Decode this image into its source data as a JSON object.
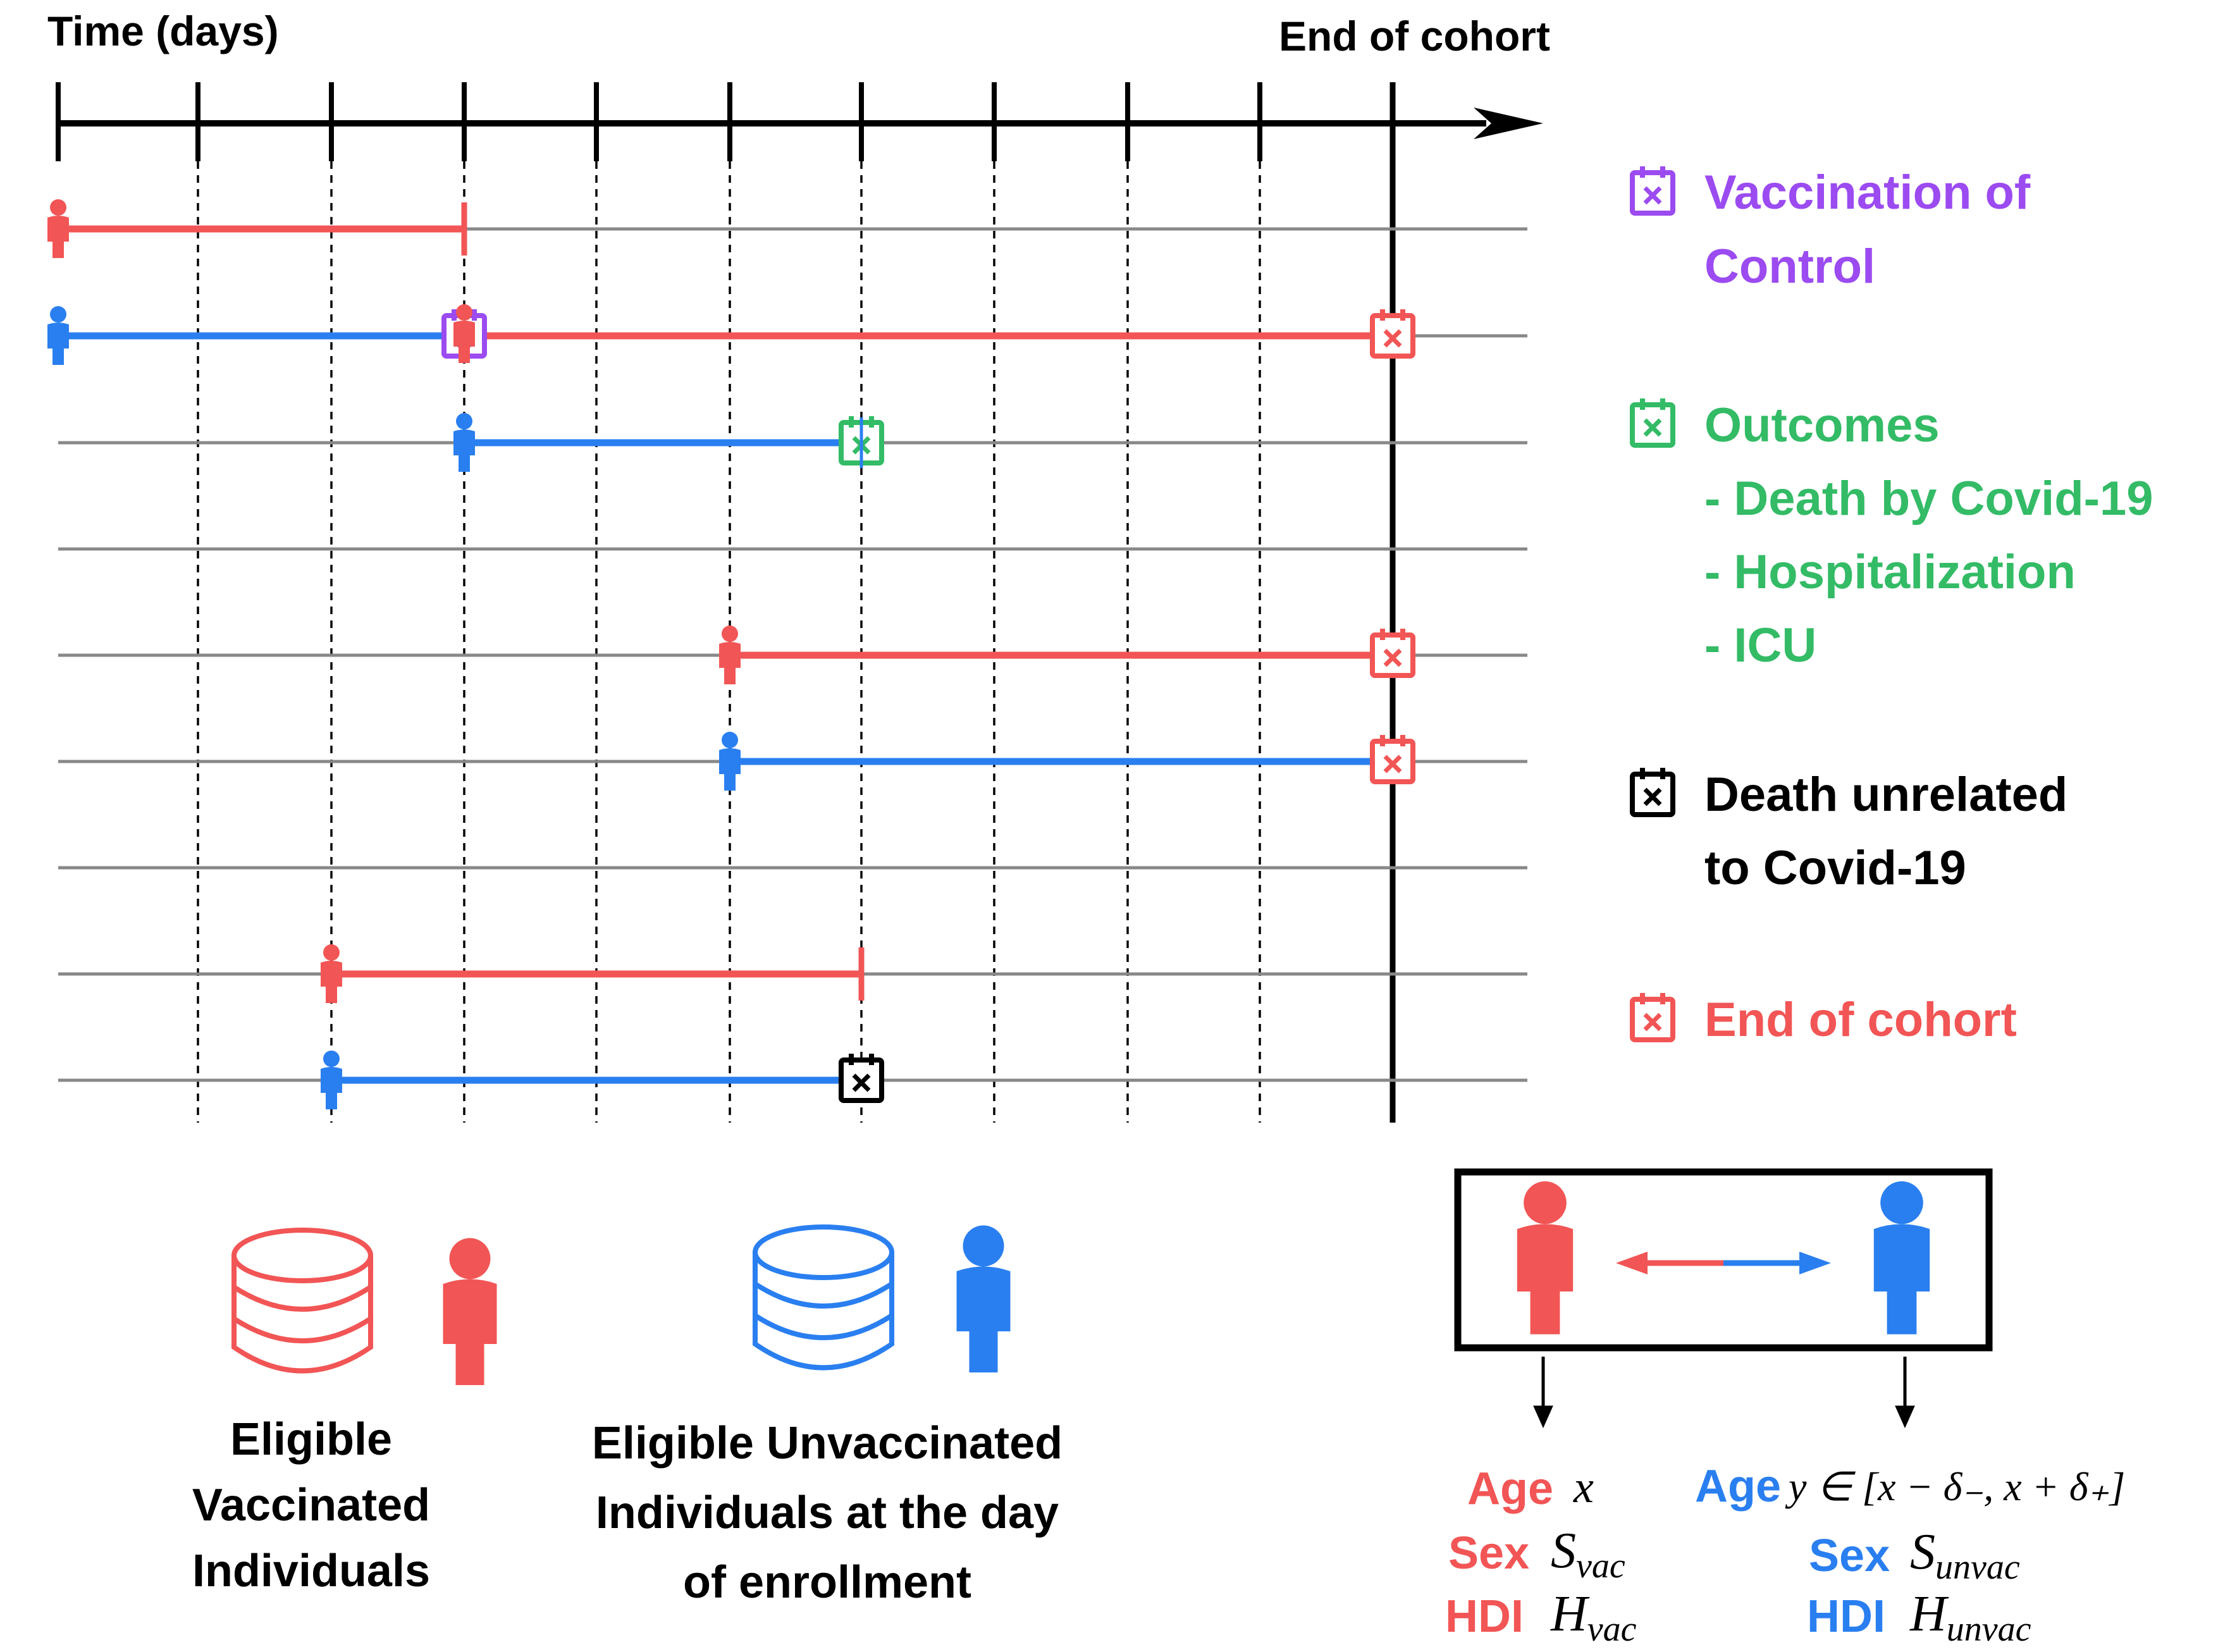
{
  "timeline": {
    "axis_label": "Time (days)",
    "end_label": "End of cohort"
  },
  "legend": {
    "vaccination": {
      "line1": "Vaccination of",
      "line2": "Control",
      "color": "#9b4bf0",
      "icon": "calendar-x-icon"
    },
    "outcomes": {
      "title": "Outcomes",
      "items": [
        "- Death by Covid-19",
        "- Hospitalization",
        "- ICU"
      ],
      "color": "#33bb66",
      "icon": "calendar-x-icon"
    },
    "death_unrelated": {
      "line1": "Death unrelated",
      "line2": "to Covid-19",
      "color": "#000000",
      "icon": "calendar-x-icon"
    },
    "end_of_cohort": {
      "label": "End of cohort",
      "color": "#f25555",
      "icon": "calendar-x-icon"
    }
  },
  "groups": {
    "vaccinated": {
      "line1": "Eligible",
      "line2": "Vaccinated",
      "line3": "Individuals",
      "color": "#f25555",
      "icon": "database-icon"
    },
    "unvaccinated": {
      "line1": "Eligible Unvaccinated",
      "line2": "Individuals at the day",
      "line3": "of enrollment",
      "color": "#2a7ff0",
      "icon": "database-icon"
    }
  },
  "matching": {
    "vac": {
      "age_label": "Age",
      "age_value": "x",
      "sex_label": "Sex",
      "sex_value": "S",
      "sex_sub": "vac",
      "hdi_label": "HDI",
      "hdi_value": "H",
      "hdi_sub": "vac"
    },
    "unvac": {
      "age_label": "Age",
      "age_value": "y ∈ [x − δ₋, x + δ₊]",
      "sex_label": "Sex",
      "sex_value": "S",
      "sex_sub": "unvac",
      "hdi_label": "HDI",
      "hdi_value": "H",
      "hdi_sub": "unvac"
    }
  },
  "colors": {
    "vaccinated": "#f25555",
    "unvaccinated": "#2a7ff0",
    "axis": "#000000",
    "grid": "#888888"
  }
}
